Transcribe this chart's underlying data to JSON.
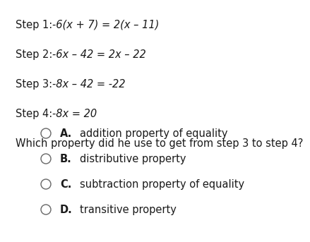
{
  "bg_color": "#ffffff",
  "text_color": "#1a1a1a",
  "circle_color": "#666666",
  "step_lines": [
    "Step 1: -6(x + 7) = 2(x – 11)",
    "Step 2: -6x – 42 = 2x – 22",
    "Step 3: -8x – 42 = -22",
    "Step 4: -8x = 20"
  ],
  "step_italic_parts": [
    "-6(x + 7) = 2(x – 11)",
    "-6x – 42 = 2x – 22",
    "-8x – 42 = -22",
    "-8x = 20"
  ],
  "step_normal_parts": [
    "Step 1: ",
    "Step 2: ",
    "Step 3: ",
    "Step 4: "
  ],
  "question": "Which property did he use to get from step 3 to step 4?",
  "options": [
    {
      "letter": "A.",
      "text": "addition property of equality"
    },
    {
      "letter": "B.",
      "text": "distributive property"
    },
    {
      "letter": "C.",
      "text": "subtraction property of equality"
    },
    {
      "letter": "D.",
      "text": "transitive property"
    }
  ],
  "font_size": 10.5,
  "font_size_q": 10.5,
  "font_size_opt": 10.5
}
